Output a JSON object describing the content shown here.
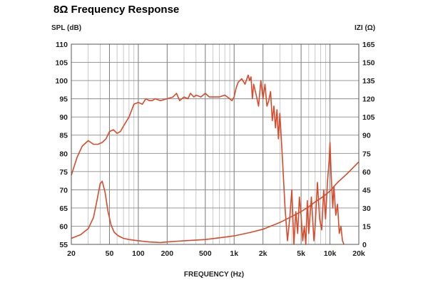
{
  "chart_data": {
    "type": "line",
    "title": "8Ω Frequency Response",
    "xlabel": "FREQUENCY (Hz)",
    "ylabel": "SPL (dB)",
    "y2label": "IZI (Ω)",
    "xscale": "log",
    "xlim": [
      20,
      20000
    ],
    "ylim": [
      55,
      110
    ],
    "y2lim": [
      0,
      165
    ],
    "grid": true,
    "x_tick_values": [
      20,
      50,
      100,
      200,
      500,
      1000,
      2000,
      5000,
      10000,
      20000
    ],
    "x_tick_labels": [
      "20",
      "50",
      "100",
      "200",
      "500",
      "1k",
      "2k",
      "5k",
      "10k",
      "20k"
    ],
    "y_ticks": [
      55,
      60,
      65,
      70,
      75,
      80,
      85,
      90,
      95,
      100,
      105,
      110
    ],
    "y2_ticks": [
      0,
      15,
      30,
      45,
      60,
      75,
      90,
      105,
      120,
      135,
      150,
      165
    ],
    "color": "#d94a2b",
    "series": [
      {
        "name": "SPL",
        "axis": "left",
        "x": [
          20,
          23,
          26,
          30,
          34,
          38,
          42,
          46,
          50,
          55,
          60,
          65,
          70,
          80,
          90,
          100,
          110,
          120,
          130,
          140,
          150,
          170,
          200,
          230,
          250,
          270,
          300,
          330,
          350,
          380,
          400,
          450,
          500,
          550,
          600,
          700,
          800,
          900,
          950,
          1000,
          1050,
          1100,
          1200,
          1300,
          1400,
          1450,
          1500,
          1550,
          1600,
          1700,
          1800,
          1900,
          2000,
          2100,
          2200,
          2300,
          2400,
          2500,
          2600,
          2700,
          2800,
          2900,
          3000,
          3200,
          3400,
          3600,
          3800,
          4000,
          4200,
          4400,
          4600,
          4800,
          5000,
          5200,
          5400,
          5600,
          5800,
          6000,
          6400,
          6800,
          7000,
          7400,
          7800,
          8200,
          8600,
          9000,
          9400,
          9800,
          10000,
          10300,
          10700,
          11000,
          11500,
          12000,
          12500,
          13000,
          13500,
          14000
        ],
        "y": [
          74,
          79,
          82,
          83.5,
          82.5,
          82.5,
          83,
          84,
          86,
          86.5,
          85.5,
          86,
          87.5,
          90,
          93.5,
          94,
          93.5,
          95,
          94.5,
          94.5,
          95,
          94.5,
          95,
          95.5,
          96.5,
          94.5,
          95.5,
          95,
          96.5,
          95.5,
          96,
          95.5,
          96.5,
          95.5,
          95.5,
          95.5,
          96,
          95,
          94.5,
          95.5,
          98,
          99.5,
          100.5,
          99,
          101.5,
          100,
          101,
          95,
          99,
          96,
          93,
          100,
          95,
          99,
          93,
          94.5,
          97,
          89,
          93,
          87,
          92,
          84,
          91,
          78,
          65,
          56,
          62,
          70,
          55,
          64,
          58,
          68,
          63,
          56,
          60,
          54,
          67,
          58,
          68,
          56,
          60,
          72,
          62,
          59,
          70,
          62,
          72,
          78,
          83,
          74,
          65,
          71,
          63,
          66,
          58,
          60,
          56,
          55
        ]
      },
      {
        "name": "Impedance",
        "axis": "right",
        "x": [
          20,
          25,
          30,
          34,
          37,
          40,
          42,
          45,
          48,
          52,
          56,
          62,
          70,
          80,
          100,
          130,
          170,
          200,
          300,
          500,
          800,
          1000,
          1500,
          2000,
          3000,
          4000,
          5000,
          6000,
          7000,
          8000,
          9000,
          10000,
          12000,
          15000,
          20000
        ],
        "y": [
          5,
          8,
          13,
          22,
          36,
          50,
          52,
          43,
          28,
          16,
          10,
          7,
          5,
          4,
          3,
          2,
          1.5,
          2,
          3,
          4,
          6,
          7,
          10,
          12.5,
          18,
          23,
          27,
          31,
          35,
          38,
          41,
          44,
          51,
          58,
          68
        ]
      }
    ]
  }
}
